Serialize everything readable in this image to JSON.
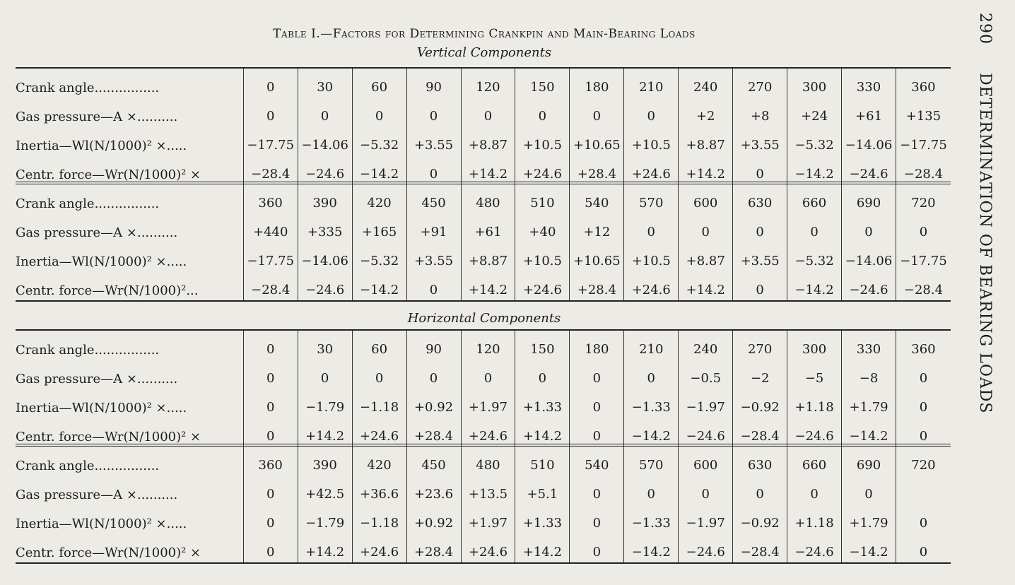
{
  "page_number": "290",
  "running_head": "DETERMINATION OF BEARING LOADS",
  "title": "Table I.—Factors for Determining Crankpin and Main-Bearing Loads",
  "sections": [
    {
      "heading": "Vertical Components",
      "blocks": [
        {
          "rows": [
            {
              "label": "Crank angle................",
              "cells": [
                "0",
                "30",
                "60",
                "90",
                "120",
                "150",
                "180",
                "210",
                "240",
                "270",
                "300",
                "330",
                "360"
              ]
            },
            {
              "label": "Gas pressure—A ×..........",
              "cells": [
                "0",
                "0",
                "0",
                "0",
                "0",
                "0",
                "0",
                "0",
                "+2",
                "+8",
                "+24",
                "+61",
                "+135"
              ]
            },
            {
              "label": "Inertia—Wl(N/1000)² ×.....",
              "cells": [
                "−17.75",
                "−14.06",
                "−5.32",
                "+3.55",
                "+8.87",
                "+10.5",
                "+10.65",
                "+10.5",
                "+8.87",
                "+3.55",
                "−5.32",
                "−14.06",
                "−17.75"
              ]
            },
            {
              "label": "Centr. force—Wr(N/1000)² ×",
              "cells": [
                "−28.4",
                "−24.6",
                "−14.2",
                "0",
                "+14.2",
                "+24.6",
                "+28.4",
                "+24.6",
                "+14.2",
                "0",
                "−14.2",
                "−24.6",
                "−28.4"
              ]
            }
          ]
        },
        {
          "rows": [
            {
              "label": "Crank angle................",
              "cells": [
                "360",
                "390",
                "420",
                "450",
                "480",
                "510",
                "540",
                "570",
                "600",
                "630",
                "660",
                "690",
                "720"
              ]
            },
            {
              "label": "Gas pressure—A ×..........",
              "cells": [
                "+440",
                "+335",
                "+165",
                "+91",
                "+61",
                "+40",
                "+12",
                "0",
                "0",
                "0",
                "0",
                "0",
                "0"
              ]
            },
            {
              "label": "Inertia—Wl(N/1000)² ×.....",
              "cells": [
                "−17.75",
                "−14.06",
                "−5.32",
                "+3.55",
                "+8.87",
                "+10.5",
                "+10.65",
                "+10.5",
                "+8.87",
                "+3.55",
                "−5.32",
                "−14.06",
                "−17.75"
              ]
            },
            {
              "label": "Centr. force—Wr(N/1000)²...",
              "cells": [
                "−28.4",
                "−24.6",
                "−14.2",
                "0",
                "+14.2",
                "+24.6",
                "+28.4",
                "+24.6",
                "+14.2",
                "0",
                "−14.2",
                "−24.6",
                "−28.4"
              ]
            }
          ]
        }
      ]
    },
    {
      "heading": "Horizontal Components",
      "blocks": [
        {
          "rows": [
            {
              "label": "Crank angle................",
              "cells": [
                "0",
                "30",
                "60",
                "90",
                "120",
                "150",
                "180",
                "210",
                "240",
                "270",
                "300",
                "330",
                "360"
              ]
            },
            {
              "label": "Gas pressure—A ×..........",
              "cells": [
                "0",
                "0",
                "0",
                "0",
                "0",
                "0",
                "0",
                "0",
                "−0.5",
                "−2",
                "−5",
                "−8",
                "0"
              ]
            },
            {
              "label": "Inertia—Wl(N/1000)² ×.....",
              "cells": [
                "0",
                "−1.79",
                "−1.18",
                "+0.92",
                "+1.97",
                "+1.33",
                "0",
                "−1.33",
                "−1.97",
                "−0.92",
                "+1.18",
                "+1.79",
                "0"
              ]
            },
            {
              "label": "Centr. force—Wr(N/1000)² ×",
              "cells": [
                "0",
                "+14.2",
                "+24.6",
                "+28.4",
                "+24.6",
                "+14.2",
                "0",
                "−14.2",
                "−24.6",
                "−28.4",
                "−24.6",
                "−14.2",
                "0"
              ]
            }
          ]
        },
        {
          "rows": [
            {
              "label": "Crank angle................",
              "cells": [
                "360",
                "390",
                "420",
                "450",
                "480",
                "510",
                "540",
                "570",
                "600",
                "630",
                "660",
                "690",
                "720"
              ]
            },
            {
              "label": "Gas pressure—A ×..........",
              "cells": [
                "0",
                "+42.5",
                "+36.6",
                "+23.6",
                "+13.5",
                "+5.1",
                "0",
                "0",
                "0",
                "0",
                "0",
                "0",
                ""
              ]
            },
            {
              "label": "Inertia—Wl(N/1000)² ×.....",
              "cells": [
                "0",
                "−1.79",
                "−1.18",
                "+0.92",
                "+1.97",
                "+1.33",
                "0",
                "−1.33",
                "−1.97",
                "−0.92",
                "+1.18",
                "+1.79",
                "0"
              ]
            },
            {
              "label": "Centr. force—Wr(N/1000)² ×",
              "cells": [
                "0",
                "+14.2",
                "+24.6",
                "+28.4",
                "+24.6",
                "+14.2",
                "0",
                "−14.2",
                "−24.6",
                "−28.4",
                "−24.6",
                "−14.2",
                "0"
              ]
            }
          ]
        }
      ]
    }
  ]
}
